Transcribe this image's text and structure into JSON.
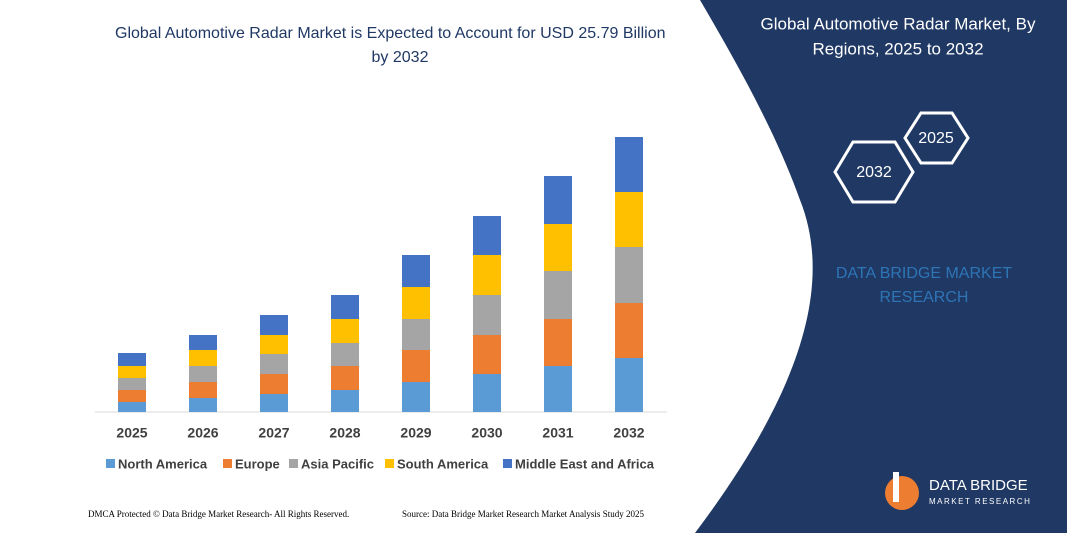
{
  "chart_data": {
    "type": "stacked_bar",
    "title": "Global Automotive Radar Market is Expected to Account for USD 25.79 Billion by 2032",
    "categories": [
      "2025",
      "2026",
      "2027",
      "2028",
      "2029",
      "2030",
      "2031",
      "2032"
    ],
    "series": [
      {
        "name": "North America",
        "color": "#5b9bd5",
        "values": [
          10,
          14,
          18,
          22,
          30,
          38,
          46,
          54
        ]
      },
      {
        "name": "Europe",
        "color": "#ed7d31",
        "values": [
          12,
          16,
          20,
          24,
          32,
          39,
          47,
          55
        ]
      },
      {
        "name": "Asia Pacific",
        "color": "#a5a5a5",
        "values": [
          12,
          16,
          20,
          23,
          31,
          40,
          48,
          56
        ]
      },
      {
        "name": "South America",
        "color": "#ffc000",
        "values": [
          12,
          16,
          19,
          24,
          32,
          40,
          47,
          55
        ]
      },
      {
        "name": "Middle East and Africa",
        "color": "#4472c4",
        "values": [
          13,
          15,
          20,
          24,
          32,
          39,
          48,
          55
        ]
      }
    ]
  },
  "side_panel": {
    "title": "Global Automotive Radar Market, By Regions, 2025 to 2032",
    "hex_front": "2032",
    "hex_back": "2025",
    "brand": "DATA BRIDGE MARKET RESEARCH"
  },
  "logo": {
    "name": "DATA BRIDGE",
    "tagline": "MARKET RESEARCH"
  },
  "footer": {
    "left": "DMCA Protected © Data Bridge Market Research- All Rights Reserved.",
    "right": "Source: Data Bridge Market Research Market Analysis Study 2025"
  }
}
